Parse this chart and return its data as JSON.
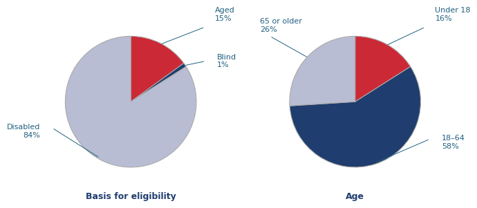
{
  "chart1": {
    "title": "Basis for eligibility",
    "slices": [
      {
        "label": "Aged\n15%",
        "value": 15,
        "color": "#cc2936"
      },
      {
        "label": "Blind\n1%",
        "value": 1,
        "color": "#1f3d6e"
      },
      {
        "label": "Disabled\n84%",
        "value": 84,
        "color": "#b8bdd4"
      }
    ]
  },
  "chart2": {
    "title": "Age",
    "slices": [
      {
        "label": "Under 18\n16%",
        "value": 16,
        "color": "#cc2936"
      },
      {
        "label": "18–64\n58%",
        "value": 58,
        "color": "#1f3d6e"
      },
      {
        "label": "65 or older\n26%",
        "value": 26,
        "color": "#b8bdd4"
      }
    ]
  },
  "title_color": "#1f3d6e",
  "label_color": "#1f6080",
  "background_color": "#ffffff",
  "title_fontsize": 9,
  "label_fontsize": 8
}
